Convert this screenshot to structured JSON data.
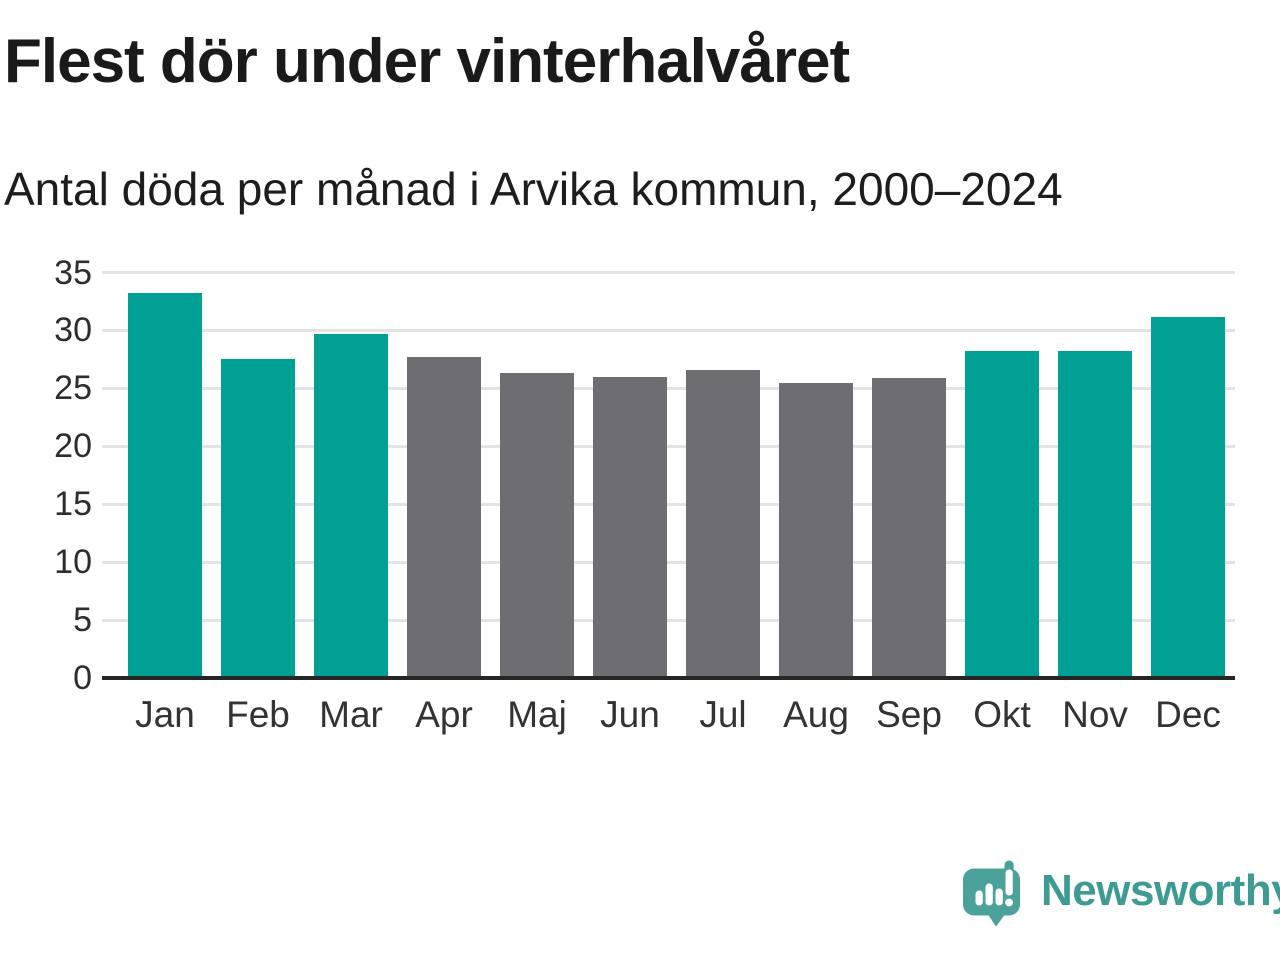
{
  "header": {
    "title": "Flest dör under vinterhalvåret",
    "subtitle": "Antal döda per månad i Arvika kommun, 2000–2024"
  },
  "branding": {
    "logo_text": "Newsworthy",
    "logo_icon": "bar-chart-speech-bubble-icon",
    "logo_icon_color": "#4aa29b",
    "logo_text_color": "#3e9b94"
  },
  "colors": {
    "winter_bar": "#00a095",
    "summer_bar": "#6e6e72",
    "gridline": "#e3e3e3",
    "baseline": "#262626",
    "tick_label": "#2d2d2d"
  },
  "chart_data": {
    "type": "bar",
    "title": "Flest dör under vinterhalvåret",
    "subtitle": "Antal döda per månad i Arvika kommun, 2000–2024",
    "categories": [
      "Jan",
      "Feb",
      "Mar",
      "Apr",
      "Maj",
      "Jun",
      "Jul",
      "Aug",
      "Sep",
      "Okt",
      "Nov",
      "Dec"
    ],
    "values": [
      33.2,
      27.5,
      29.7,
      27.7,
      26.3,
      26.0,
      26.6,
      25.5,
      25.9,
      28.2,
      28.2,
      31.2
    ],
    "bar_color_keys": [
      "winter",
      "winter",
      "winter",
      "summer",
      "summer",
      "summer",
      "summer",
      "summer",
      "summer",
      "winter",
      "winter",
      "winter"
    ],
    "xlabel": "",
    "ylabel": "",
    "ylim": [
      0,
      35
    ],
    "yticks": [
      0,
      5,
      10,
      15,
      20,
      25,
      30,
      35
    ],
    "grid": "horizontal",
    "legend": "none"
  }
}
